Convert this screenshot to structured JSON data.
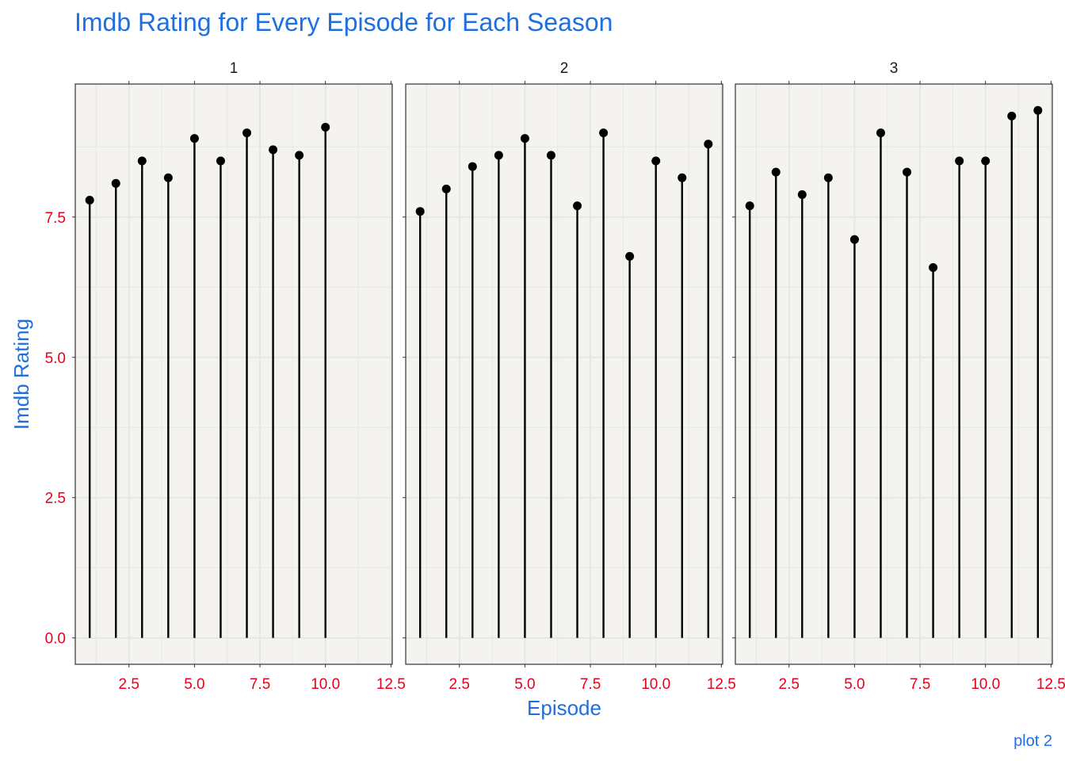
{
  "chart_data": {
    "type": "lollipop",
    "title": "Imdb Rating for Every Episode for Each Season",
    "xlabel": "Episode",
    "ylabel": "Imdb Rating",
    "caption": "plot 2",
    "facets": [
      {
        "label": "1",
        "x": [
          1,
          2,
          3,
          4,
          5,
          6,
          7,
          8,
          9,
          10
        ],
        "values": [
          7.8,
          8.1,
          8.5,
          8.2,
          8.9,
          8.5,
          9.0,
          8.7,
          8.6,
          9.1
        ]
      },
      {
        "label": "2",
        "x": [
          1,
          2,
          3,
          4,
          5,
          6,
          7,
          8,
          9,
          10,
          11,
          12
        ],
        "values": [
          7.6,
          8.0,
          8.4,
          8.6,
          8.9,
          8.6,
          7.7,
          9.0,
          6.8,
          8.5,
          8.2,
          8.8
        ]
      },
      {
        "label": "3",
        "x": [
          1,
          2,
          3,
          4,
          5,
          6,
          7,
          8,
          9,
          10,
          11,
          12
        ],
        "values": [
          7.7,
          8.3,
          7.9,
          8.2,
          7.1,
          9.0,
          8.3,
          6.6,
          8.5,
          8.5,
          9.3,
          9.4
        ]
      }
    ],
    "x_ticks": [
      "2.5",
      "5.0",
      "7.5",
      "10.0",
      "12.5"
    ],
    "y_ticks": [
      "0.0",
      "2.5",
      "5.0",
      "7.5"
    ],
    "xlim": [
      0.45,
      12.55
    ],
    "ylim": [
      -0.47,
      9.87
    ],
    "grid": true,
    "colors": {
      "title": "#1f6fe0",
      "axis_text": "#e8001c",
      "panel_bg": "#f4f3f0",
      "grid": "#e6e6e6",
      "points": "#000000"
    }
  }
}
